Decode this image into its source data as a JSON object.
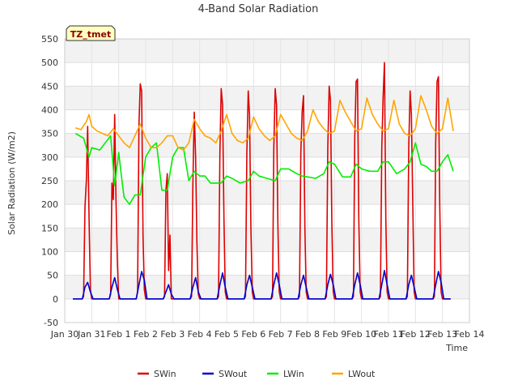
{
  "chart_data": {
    "type": "line",
    "title": "4-Band Solar Radiation",
    "xlabel": "Time",
    "ylabel": "Solar Radiation (W/m2)",
    "badge": "TZ_tmet",
    "ylim": [
      -50,
      550
    ],
    "xlim": [
      0,
      15
    ],
    "yticks": [
      -50,
      0,
      50,
      100,
      150,
      200,
      250,
      300,
      350,
      400,
      450,
      500,
      550
    ],
    "xticks": [
      {
        "x": 0,
        "label": "Jan 30"
      },
      {
        "x": 1,
        "label": "Jan 31"
      },
      {
        "x": 2,
        "label": "Feb 1"
      },
      {
        "x": 3,
        "label": "Feb 2"
      },
      {
        "x": 4,
        "label": "Feb 3"
      },
      {
        "x": 5,
        "label": "Feb 4"
      },
      {
        "x": 6,
        "label": "Feb 5"
      },
      {
        "x": 7,
        "label": "Feb 6"
      },
      {
        "x": 8,
        "label": "Feb 7"
      },
      {
        "x": 9,
        "label": "Feb 8"
      },
      {
        "x": 10,
        "label": "Feb 9"
      },
      {
        "x": 11,
        "label": "Feb 10"
      },
      {
        "x": 12,
        "label": "Feb 11"
      },
      {
        "x": 13,
        "label": "Feb 12"
      },
      {
        "x": 14,
        "label": "Feb 13"
      },
      {
        "x": 15,
        "label": "Feb 14"
      }
    ],
    "grid": true,
    "legend_position": "bottom",
    "series": [
      {
        "name": "SWin",
        "color": "#dd0000",
        "x": [
          0.3,
          0.65,
          0.7,
          0.75,
          0.8,
          0.85,
          0.9,
          0.95,
          1.0,
          1.3,
          1.65,
          1.7,
          1.75,
          1.8,
          1.85,
          1.9,
          1.95,
          2.0,
          2.3,
          2.65,
          2.7,
          2.75,
          2.8,
          2.85,
          2.9,
          2.95,
          3.0,
          3.3,
          3.65,
          3.7,
          3.75,
          3.8,
          3.85,
          3.9,
          3.95,
          4.0,
          4.3,
          4.65,
          4.7,
          4.75,
          4.8,
          4.85,
          4.9,
          4.95,
          5.0,
          5.3,
          5.65,
          5.7,
          5.75,
          5.8,
          5.85,
          5.9,
          5.95,
          6.0,
          6.3,
          6.65,
          6.7,
          6.75,
          6.8,
          6.85,
          6.9,
          6.95,
          7.0,
          7.3,
          7.65,
          7.7,
          7.75,
          7.8,
          7.85,
          7.9,
          7.95,
          8.0,
          8.3,
          8.65,
          8.7,
          8.75,
          8.8,
          8.85,
          8.9,
          8.95,
          9.0,
          9.3,
          9.65,
          9.7,
          9.75,
          9.8,
          9.85,
          9.9,
          9.95,
          10.0,
          10.3,
          10.65,
          10.7,
          10.75,
          10.8,
          10.85,
          10.9,
          10.95,
          11.0,
          11.3,
          11.65,
          11.7,
          11.75,
          11.8,
          11.85,
          11.9,
          11.95,
          12.0,
          12.3,
          12.65,
          12.7,
          12.75,
          12.8,
          12.85,
          12.9,
          12.95,
          13.0,
          13.3,
          13.65,
          13.7,
          13.75,
          13.8,
          13.85,
          13.9,
          13.95,
          14.0,
          14.3
        ],
        "values": [
          0,
          0,
          5,
          195,
          250,
          365,
          175,
          20,
          0,
          0,
          0,
          10,
          245,
          210,
          390,
          210,
          80,
          0,
          0,
          0,
          15,
          370,
          455,
          440,
          135,
          20,
          0,
          0,
          0,
          5,
          230,
          265,
          60,
          135,
          0,
          0,
          0,
          0,
          5,
          240,
          395,
          300,
          120,
          10,
          0,
          0,
          0,
          5,
          310,
          445,
          410,
          170,
          15,
          0,
          0,
          0,
          5,
          310,
          440,
          390,
          150,
          15,
          0,
          0,
          0,
          5,
          320,
          445,
          410,
          160,
          15,
          0,
          0,
          0,
          5,
          310,
          395,
          430,
          150,
          15,
          0,
          0,
          0,
          5,
          320,
          450,
          420,
          160,
          15,
          0,
          0,
          0,
          5,
          340,
          460,
          465,
          170,
          15,
          0,
          0,
          0,
          5,
          320,
          425,
          500,
          170,
          15,
          0,
          0,
          0,
          5,
          320,
          440,
          390,
          200,
          15,
          0,
          0,
          0,
          5,
          330,
          460,
          470,
          200,
          15,
          0,
          0
        ]
      },
      {
        "name": "SWout",
        "color": "#0000cc",
        "x": [
          0.3,
          0.65,
          0.75,
          0.85,
          0.95,
          1.05,
          1.3,
          1.65,
          1.75,
          1.85,
          1.95,
          2.05,
          2.3,
          2.65,
          2.75,
          2.85,
          2.95,
          3.05,
          3.3,
          3.65,
          3.75,
          3.85,
          3.95,
          4.05,
          4.3,
          4.65,
          4.75,
          4.85,
          4.95,
          5.05,
          5.3,
          5.65,
          5.75,
          5.85,
          5.95,
          6.05,
          6.3,
          6.65,
          6.75,
          6.85,
          6.95,
          7.05,
          7.3,
          7.65,
          7.75,
          7.85,
          7.95,
          8.05,
          8.3,
          8.65,
          8.75,
          8.85,
          8.95,
          9.05,
          9.3,
          9.65,
          9.75,
          9.85,
          9.95,
          10.05,
          10.3,
          10.65,
          10.75,
          10.85,
          10.95,
          11.05,
          11.3,
          11.65,
          11.75,
          11.85,
          11.95,
          12.05,
          12.3,
          12.65,
          12.75,
          12.85,
          12.95,
          13.05,
          13.3,
          13.65,
          13.75,
          13.85,
          13.95,
          14.05,
          14.3
        ],
        "values": [
          0,
          0,
          25,
          35,
          15,
          0,
          0,
          0,
          25,
          45,
          20,
          0,
          0,
          0,
          30,
          58,
          40,
          0,
          0,
          0,
          15,
          30,
          10,
          0,
          0,
          0,
          25,
          45,
          15,
          0,
          0,
          0,
          30,
          55,
          25,
          0,
          0,
          0,
          30,
          50,
          25,
          0,
          0,
          0,
          30,
          55,
          30,
          0,
          0,
          0,
          30,
          50,
          25,
          0,
          0,
          0,
          30,
          52,
          30,
          0,
          0,
          0,
          30,
          55,
          30,
          0,
          0,
          0,
          30,
          60,
          30,
          0,
          0,
          0,
          30,
          50,
          25,
          0,
          0,
          0,
          30,
          58,
          35,
          0,
          0
        ]
      },
      {
        "name": "LWin",
        "color": "#00ee00",
        "x": [
          0.4,
          0.7,
          0.9,
          1.0,
          1.3,
          1.5,
          1.7,
          1.85,
          2.0,
          2.1,
          2.2,
          2.4,
          2.6,
          2.8,
          3.0,
          3.2,
          3.4,
          3.6,
          3.8,
          4.0,
          4.2,
          4.4,
          4.6,
          4.8,
          5.0,
          5.2,
          5.4,
          5.6,
          5.8,
          6.0,
          6.2,
          6.5,
          6.8,
          7.0,
          7.2,
          7.5,
          7.8,
          8.0,
          8.3,
          8.6,
          8.8,
          9.0,
          9.3,
          9.6,
          9.8,
          10.0,
          10.3,
          10.6,
          10.8,
          11.0,
          11.3,
          11.6,
          11.8,
          12.0,
          12.3,
          12.6,
          12.8,
          13.0,
          13.2,
          13.4,
          13.6,
          13.8,
          14.0,
          14.2,
          14.4
        ],
        "values": [
          350,
          340,
          300,
          320,
          315,
          330,
          345,
          240,
          310,
          260,
          215,
          200,
          220,
          220,
          300,
          320,
          330,
          230,
          230,
          300,
          320,
          320,
          250,
          270,
          260,
          260,
          245,
          245,
          245,
          260,
          255,
          245,
          250,
          270,
          260,
          255,
          250,
          275,
          275,
          265,
          260,
          258,
          255,
          265,
          290,
          285,
          258,
          258,
          285,
          275,
          270,
          270,
          290,
          290,
          265,
          275,
          290,
          330,
          285,
          280,
          270,
          270,
          290,
          305,
          270
        ]
      },
      {
        "name": "LWout",
        "color": "#ffa500",
        "x": [
          0.4,
          0.6,
          0.8,
          0.9,
          1.0,
          1.2,
          1.4,
          1.6,
          1.8,
          2.0,
          2.2,
          2.4,
          2.6,
          2.8,
          3.0,
          3.2,
          3.4,
          3.6,
          3.8,
          4.0,
          4.2,
          4.4,
          4.6,
          4.8,
          5.0,
          5.2,
          5.4,
          5.6,
          5.8,
          6.0,
          6.2,
          6.4,
          6.6,
          6.8,
          7.0,
          7.2,
          7.4,
          7.6,
          7.8,
          8.0,
          8.2,
          8.4,
          8.6,
          8.8,
          9.0,
          9.2,
          9.4,
          9.6,
          9.8,
          10.0,
          10.2,
          10.4,
          10.6,
          10.8,
          11.0,
          11.2,
          11.4,
          11.6,
          11.8,
          12.0,
          12.2,
          12.4,
          12.6,
          12.8,
          13.0,
          13.2,
          13.4,
          13.6,
          13.8,
          14.0,
          14.2,
          14.4
        ],
        "values": [
          362,
          358,
          375,
          390,
          365,
          355,
          350,
          345,
          360,
          345,
          330,
          320,
          345,
          370,
          340,
          320,
          320,
          330,
          345,
          345,
          320,
          315,
          330,
          380,
          360,
          345,
          340,
          330,
          355,
          390,
          350,
          335,
          330,
          340,
          385,
          360,
          345,
          335,
          345,
          390,
          370,
          350,
          340,
          335,
          355,
          400,
          375,
          360,
          350,
          355,
          420,
          395,
          375,
          355,
          360,
          425,
          390,
          370,
          355,
          360,
          420,
          370,
          350,
          345,
          360,
          430,
          400,
          365,
          350,
          360,
          425,
          355
        ]
      }
    ]
  }
}
